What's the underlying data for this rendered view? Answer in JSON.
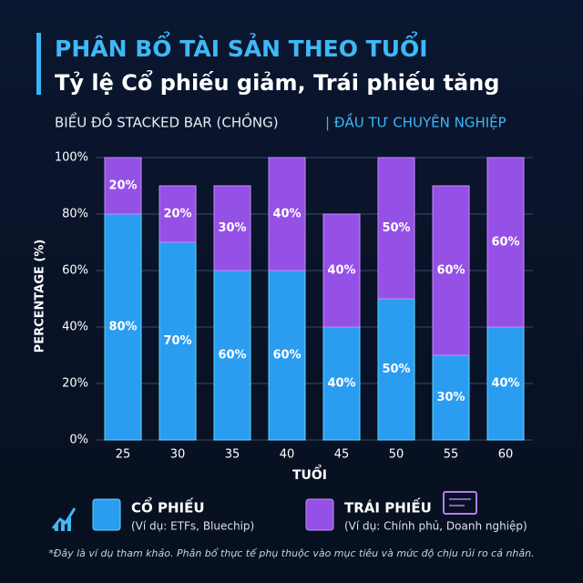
{
  "chart_data": {
    "type": "stacked_bar",
    "title": "PHÂN BỔ TÀI SẢN THEO TUỔI",
    "subtitle": "Tỷ lệ Cổ phiếu giảm, Trái phiếu tăng",
    "caption": "BIỂU ĐỒ STACKED BAR (CHỒNG)",
    "caption_extra": "| ĐẦU TƯ CHUYÊN NGHIỆP",
    "x_label": "TUỔI",
    "y_label": "PERCENTAGE (%)",
    "categories": [
      "25",
      "30",
      "35",
      "40",
      "45",
      "50",
      "55",
      "60"
    ],
    "series": [
      {
        "name": "CỔ PHIẾU",
        "description": "(Ví dụ: ETFs, Bluechip)",
        "color": "#2a9df0",
        "values": [
          80,
          70,
          60,
          60,
          40,
          50,
          30,
          40
        ],
        "value_labels": [
          "80%",
          "70%",
          "60%",
          "60%",
          "40%",
          "50%",
          "30%",
          "40%"
        ]
      },
      {
        "name": "TRÁI PHIẾU",
        "description": "(Ví dụ: Chính phủ, Doanh nghiệp)",
        "color": "#9550e6",
        "values": [
          20,
          20,
          30,
          40,
          40,
          50,
          60,
          60
        ],
        "value_labels": [
          "20%",
          "20%",
          "30%",
          "40%",
          "40%",
          "50%",
          "60%",
          "60%"
        ]
      }
    ],
    "ylim": [
      0,
      100
    ],
    "yticks": [
      {
        "value": 0,
        "label": "0%"
      },
      {
        "value": 20,
        "label": "20%"
      },
      {
        "value": 40,
        "label": "40%"
      },
      {
        "value": 60,
        "label": "60%"
      },
      {
        "value": 80,
        "label": "80%"
      },
      {
        "value": 100,
        "label": "100%"
      }
    ],
    "grid": true,
    "footnote": "*Đây là ví dụ tham khảo. Phân bổ thực tế phụ thuộc vào mục tiêu và mức độ chịu rủi ro cá nhân."
  }
}
